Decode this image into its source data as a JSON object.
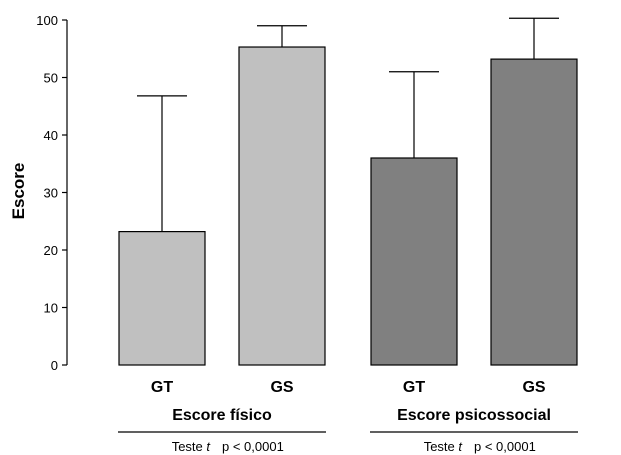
{
  "chart_data": {
    "type": "bar",
    "ylabel": "Escore",
    "y_ticks": [
      "0",
      "10",
      "20",
      "30",
      "40",
      "50",
      "100"
    ],
    "groups": [
      {
        "label": "Escore físico",
        "test_label": "Teste",
        "test_symbol": "t",
        "p_value": "p < 0,0001",
        "color": "#c0c0c0",
        "bars": [
          {
            "category": "GT",
            "value": 23.2,
            "error_upper": 46.8
          },
          {
            "category": "GS",
            "value": 55.3,
            "error_upper": 59.0
          }
        ]
      },
      {
        "label": "Escore psicossocial",
        "test_label": "Teste",
        "test_symbol": "t",
        "p_value": "p < 0,0001",
        "color": "#808080",
        "bars": [
          {
            "category": "GT",
            "value": 36.0,
            "error_upper": 51.0
          },
          {
            "category": "GS",
            "value": 53.2,
            "error_upper": 60.3
          }
        ]
      }
    ]
  }
}
